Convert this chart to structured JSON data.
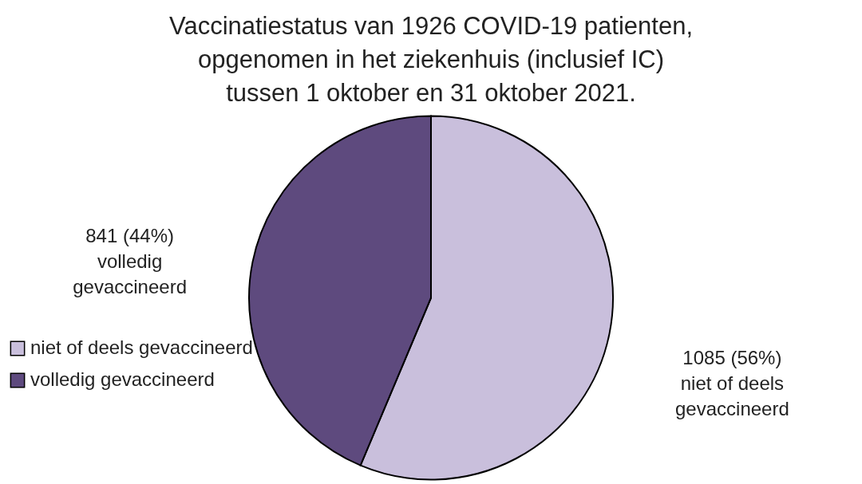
{
  "chart_data": {
    "type": "pie",
    "title": "Vaccinatiestatus van 1926 COVID-19 patienten,\nopgenomen in het ziekenhuis (inclusief IC)\ntussen 1 oktober en 31 oktober 2021.",
    "categories": [
      "niet of deels gevaccineerd",
      "volledig gevaccineerd"
    ],
    "values": [
      1085,
      841
    ],
    "colors": [
      "#c9bfdc",
      "#5e4a7e"
    ],
    "value_labels": [
      "1085 (56%)\nniet of deels\ngevaccineerd",
      "841 (44%)\nvolledig\ngevaccineerd"
    ],
    "legend": "bottom left"
  }
}
